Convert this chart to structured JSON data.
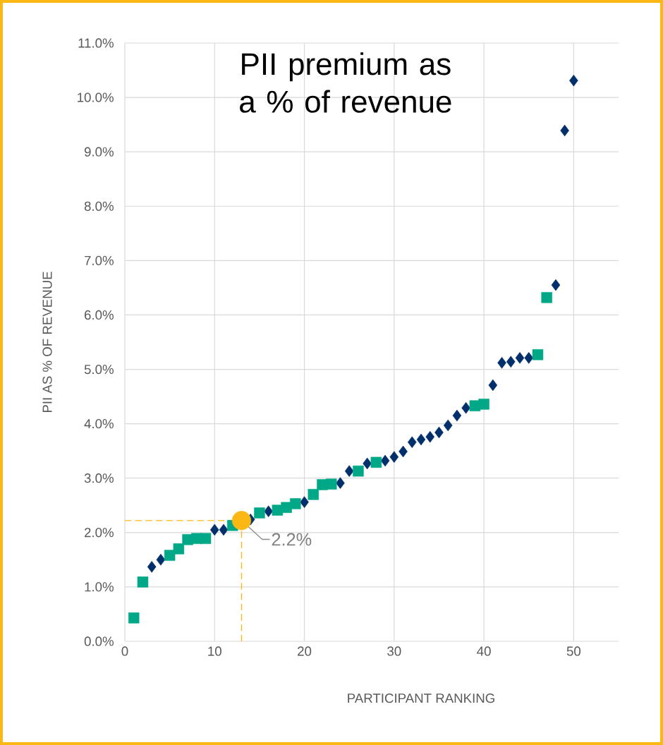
{
  "chart_data": {
    "type": "scatter",
    "title": "PII premium as a % of revenue",
    "xlabel": "PARTICIPANT RANKING",
    "ylabel": "PII AS % OF REVENUE",
    "xlim": [
      0,
      55
    ],
    "xticks": [
      0,
      10,
      20,
      30,
      40,
      50
    ],
    "ylim": [
      0,
      11
    ],
    "yticks": [
      {
        "value": 0,
        "label": "0.0%"
      },
      {
        "value": 1,
        "label": "1.0%"
      },
      {
        "value": 2,
        "label": "2.0%"
      },
      {
        "value": 3,
        "label": "3.0%"
      },
      {
        "value": 4,
        "label": "4.0%"
      },
      {
        "value": 5,
        "label": "5.0%"
      },
      {
        "value": 6,
        "label": "6.0%"
      },
      {
        "value": 7,
        "label": "7.0%"
      },
      {
        "value": 8,
        "label": "8.0%"
      },
      {
        "value": 9,
        "label": "9.0%"
      },
      {
        "value": 10,
        "label": "10.0%"
      },
      {
        "value": 11,
        "label": "11.0%"
      }
    ],
    "grid": true,
    "ref_lines": [
      {
        "axis": "x",
        "value": 13,
        "color": "#fbb714",
        "line_style": "dashed"
      },
      {
        "axis": "y",
        "value": 2.22,
        "color": "#fbb714",
        "line_style": "dashed"
      }
    ],
    "series": [
      {
        "color": "#002f6c",
        "marker": "diamond",
        "x": [
          3,
          4,
          10,
          11,
          14,
          16,
          20,
          24,
          25,
          27,
          29,
          30,
          31,
          32,
          33,
          34,
          35,
          36,
          37,
          38,
          41,
          42,
          43,
          44,
          45,
          48,
          49,
          50
        ],
        "values": [
          1.37,
          1.5,
          2.05,
          2.05,
          2.24,
          2.39,
          2.56,
          2.91,
          3.13,
          3.27,
          3.32,
          3.39,
          3.49,
          3.66,
          3.71,
          3.76,
          3.84,
          3.97,
          4.15,
          4.29,
          4.71,
          5.12,
          5.14,
          5.21,
          5.21,
          6.55,
          9.39,
          10.31
        ]
      },
      {
        "color": "#00a887",
        "marker": "square",
        "x": [
          1,
          2,
          5,
          6,
          7,
          8,
          9,
          12,
          15,
          17,
          18,
          19,
          21,
          22,
          23,
          26,
          28,
          39,
          40,
          46,
          47
        ],
        "values": [
          0.43,
          1.09,
          1.58,
          1.7,
          1.87,
          1.89,
          1.89,
          2.13,
          2.36,
          2.41,
          2.46,
          2.53,
          2.7,
          2.88,
          2.89,
          3.13,
          3.29,
          4.33,
          4.36,
          5.27,
          6.32
        ]
      },
      {
        "color": "#fbb714",
        "marker": "circle",
        "x": [
          13
        ],
        "values": [
          2.22
        ]
      }
    ],
    "annotations": [
      {
        "text": "2.2%",
        "x": 13,
        "y": 2.22
      }
    ]
  }
}
